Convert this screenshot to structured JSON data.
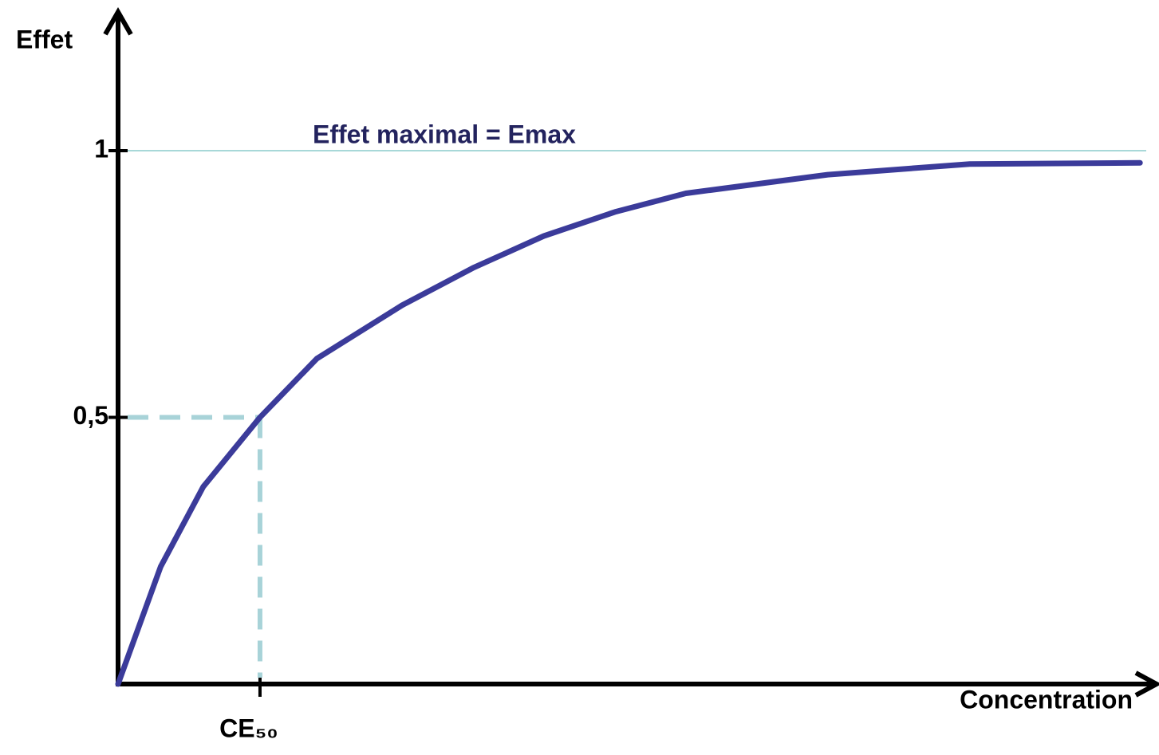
{
  "chart_data": {
    "type": "line",
    "x_label": "Concentration",
    "y_label": "Effet",
    "annotation": "Effet maximal = Emax",
    "x": [
      0,
      0.3,
      0.6,
      1,
      1.4,
      2,
      2.5,
      3,
      3.5,
      4,
      5,
      6,
      7.2
    ],
    "series": [
      {
        "color": "#3b3b9a",
        "values": [
          0,
          0.22,
          0.37,
          0.5,
          0.61,
          0.71,
          0.78,
          0.84,
          0.885,
          0.92,
          0.955,
          0.975,
          0.977
        ]
      }
    ],
    "xlim": [
      0,
      7.3
    ],
    "xticks": [
      {
        "value": 1,
        "label": "CE₅₀"
      }
    ],
    "ylim": [
      0,
      1.26
    ],
    "yticks": [
      {
        "value": 0.5,
        "label": "0,5"
      },
      1
    ],
    "grid": false
  }
}
